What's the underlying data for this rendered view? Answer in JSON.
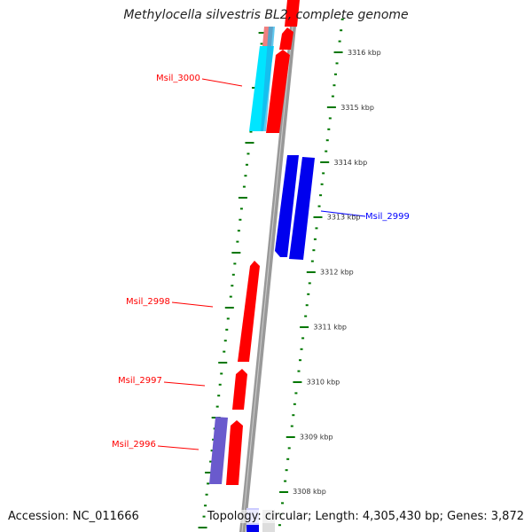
{
  "title": "Methylocella silvestris BL2, complete genome",
  "accession": "Accession: NC_011666",
  "summary": "Topology: circular; Length: 4,305,430 bp; Genes: 3,872",
  "ticks": [
    "3316 kbp",
    "3315 kbp",
    "3314 kbp",
    "3313 kbp",
    "3312 kbp",
    "3311 kbp",
    "3310 kbp",
    "3309 kbp",
    "3308 kbp"
  ],
  "genes": [
    "Msil_3000",
    "Msil_2999",
    "Msil_2998",
    "Msil_2997",
    "Msil_2996"
  ],
  "colors": {
    "forward": "#ff0000",
    "reverse": "#0000ff",
    "cyan": "#00ffff",
    "purple": "#6a5acd",
    "tick": "#007700",
    "backbone": "#888888"
  }
}
